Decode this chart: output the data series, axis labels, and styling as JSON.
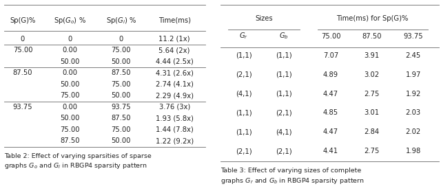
{
  "table2": {
    "col_headers": [
      "Sp(G)%",
      "Sp($G_o$) %",
      "Sp($G_i$) %",
      "Time(ms)"
    ],
    "rows": [
      [
        "0",
        "0",
        "0",
        "11.2 (1x)"
      ],
      [
        "75.00",
        "0.00",
        "75.00",
        "5.64 (2x)"
      ],
      [
        "",
        "50.00",
        "50.00",
        "4.44 (2.5x)"
      ],
      [
        "87.50",
        "0.00",
        "87.50",
        "4.31 (2.6x)"
      ],
      [
        "",
        "50.00",
        "75.00",
        "2.74 (4.1x)"
      ],
      [
        "",
        "75.00",
        "50.00",
        "2.29 (4.9x)"
      ],
      [
        "93.75",
        "0.00",
        "93.75",
        "3.76 (3x)"
      ],
      [
        "",
        "50.00",
        "87.50",
        "1.93 (5.8x)"
      ],
      [
        "",
        "75.00",
        "75.00",
        "1.44 (7.8x)"
      ],
      [
        "",
        "87.50",
        "50.00",
        "1.22 (9.2x)"
      ]
    ],
    "group_dividers_after": [
      0,
      1,
      3,
      6
    ],
    "caption": "Table 2: Effect of varying sparsities of sparse\ngraphs $G_o$ and $G_i$ in RBGP4 sparsity pattern"
  },
  "table3": {
    "col_headers_group1": "Sizes",
    "col_headers_group2": "Time(ms) for Sp(G)%",
    "sub_headers": [
      "$G_r$",
      "$G_b$",
      "75.00",
      "87.50",
      "93.75"
    ],
    "rows": [
      [
        "(1,1)",
        "(1,1)",
        "7.07",
        "3.91",
        "2.45"
      ],
      [
        "(2,1)",
        "(1,1)",
        "4.89",
        "3.02",
        "1.97"
      ],
      [
        "(4,1)",
        "(1,1)",
        "4.47",
        "2.75",
        "1.92"
      ],
      [
        "(1,1)",
        "(2,1)",
        "4.85",
        "3.01",
        "2.03"
      ],
      [
        "(1,1)",
        "(4,1)",
        "4.47",
        "2.84",
        "2.02"
      ],
      [
        "(2,1)",
        "(2,1)",
        "4.41",
        "2.75",
        "1.98"
      ]
    ],
    "caption": "Table 3: Effect of varying sizes of complete\ngraphs $G_r$ and $G_b$ in RBGP4 sparsity pattern"
  },
  "bg_color": "#ffffff",
  "text_color": "#222222",
  "line_color": "#666666",
  "font_size": 7.2,
  "caption_font_size": 6.8
}
